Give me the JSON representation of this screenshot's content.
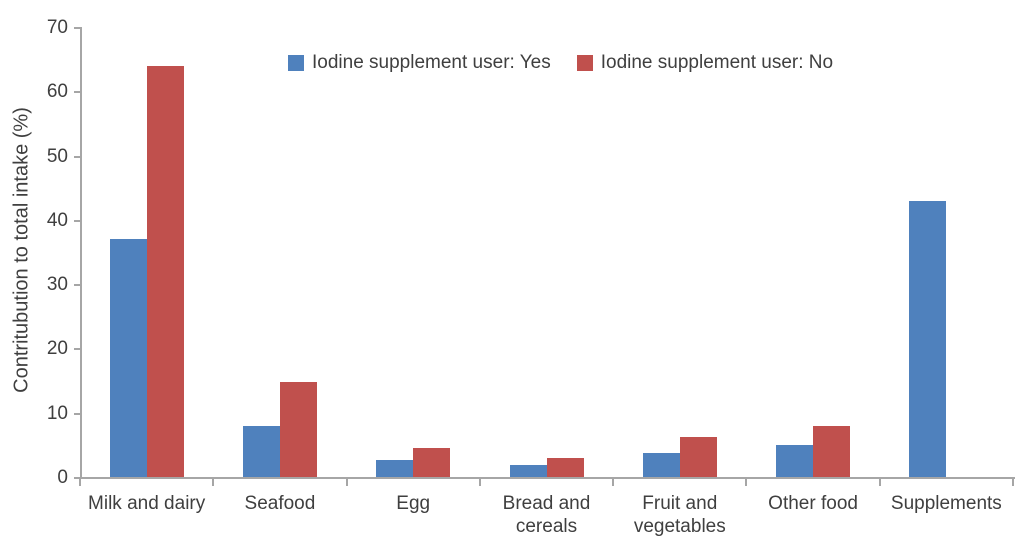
{
  "chart_data": {
    "type": "bar",
    "title": "",
    "xlabel": "",
    "ylabel": "Contritubution to total intake (%)",
    "ylim": [
      0,
      70
    ],
    "ytick_step": 10,
    "yticks": [
      0,
      10,
      20,
      30,
      40,
      50,
      60,
      70
    ],
    "grid": false,
    "legend_position": "top-center",
    "categories": [
      "Milk and dairy",
      "Seafood",
      "Egg",
      "Bread and cereals",
      "Fruit and vegetables",
      "Other food",
      "Supplements"
    ],
    "category_display_lines": [
      [
        "Milk and dairy"
      ],
      [
        "Seafood"
      ],
      [
        "Egg"
      ],
      [
        "Bread and",
        "cereals"
      ],
      [
        "Fruit and",
        "vegetables"
      ],
      [
        "Other food"
      ],
      [
        "Supplements"
      ]
    ],
    "series": [
      {
        "name": "Iodine supplement user: Yes",
        "color": "#4F81BD",
        "values": [
          37,
          8,
          2.7,
          1.8,
          3.7,
          5,
          43
        ]
      },
      {
        "name": "Iodine supplement user: No",
        "color": "#C0504D",
        "values": [
          64,
          14.8,
          4.5,
          3,
          6.2,
          8,
          null
        ]
      }
    ]
  },
  "colors": {
    "axis": "#A6A6A6",
    "text": "#3F3F3F",
    "background": "#FFFFFF",
    "series_yes": "#4F81BD",
    "series_no": "#C0504D"
  }
}
